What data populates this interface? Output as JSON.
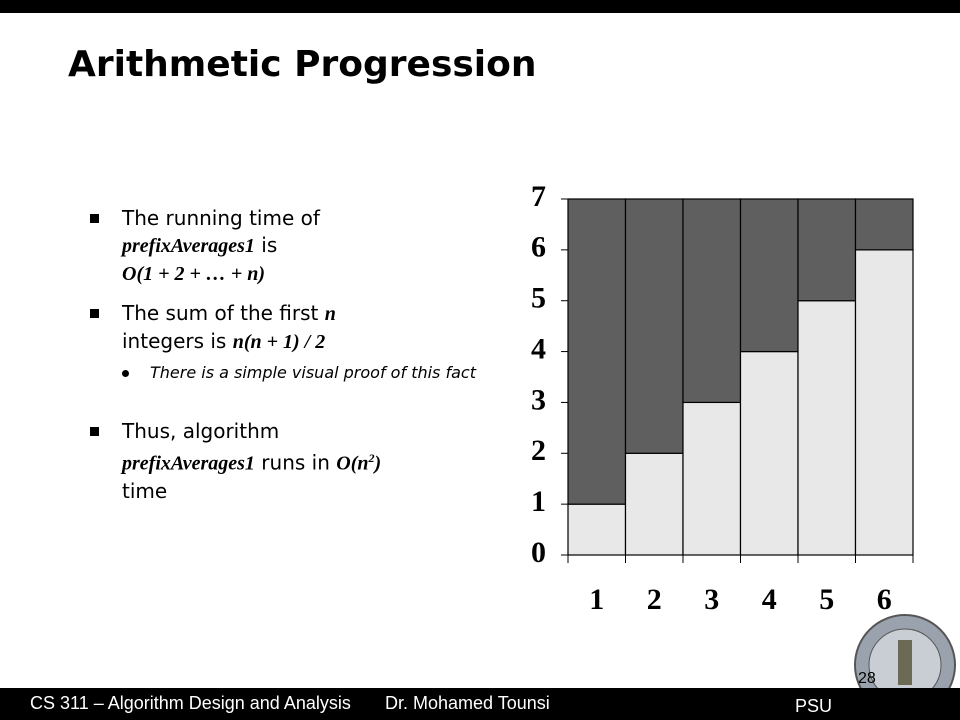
{
  "title": "Arithmetic Progression",
  "bullets": [
    [
      "The running time of",
      "prefixAverages1",
      "is",
      "O(1 + 2 + … + n)"
    ],
    [
      "The sum of the first",
      "n",
      "integers is",
      "n(n + 1) / 2"
    ],
    [
      "There is a simple visual proof of this fact"
    ],
    [
      "Thus, algorithm",
      "prefixAverages1",
      "runs in",
      "O(n",
      "2",
      ")",
      "time"
    ]
  ],
  "footer": {
    "course": "CS 311 – Algorithm Design and Analysis",
    "author": "Dr. Mohamed Tounsi",
    "org": "PSU",
    "page": "28"
  },
  "chart_data": {
    "type": "bar",
    "stacked": true,
    "categories": [
      "1",
      "2",
      "3",
      "4",
      "5",
      "6"
    ],
    "series": [
      {
        "color": "#e8e8e8",
        "values": [
          1,
          2,
          3,
          4,
          5,
          6
        ]
      },
      {
        "color": "#5f5f5f",
        "values": [
          6,
          5,
          4,
          3,
          2,
          1
        ]
      }
    ],
    "ylim": [
      0,
      7
    ],
    "yticks": [
      0,
      1,
      2,
      3,
      4,
      5,
      6,
      7
    ]
  }
}
